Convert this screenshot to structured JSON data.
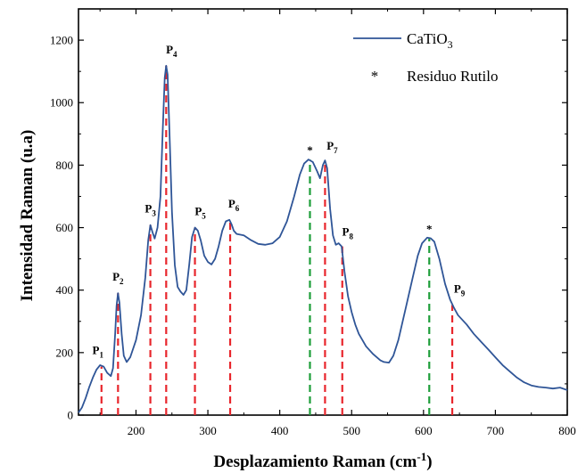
{
  "chart_data": {
    "type": "line",
    "xlabel": "Desplazamiento Raman (cm",
    "xlabel_sup": "-1",
    "xlabel_end": ")",
    "ylabel": "Intensidad Raman (u.a)",
    "xlim": [
      120,
      800
    ],
    "ylim": [
      0,
      1300
    ],
    "x_ticks": [
      200,
      300,
      400,
      500,
      600,
      700,
      800
    ],
    "y_ticks": [
      0,
      200,
      400,
      600,
      800,
      1000,
      1200
    ],
    "legend": {
      "position": "top-right",
      "series_label": "CaTiO",
      "series_sub": "3",
      "star_symbol": "*",
      "star_label": "Residuo Rutilo"
    },
    "series": [
      {
        "name": "CaTiO3",
        "color": "#2f5597",
        "points": [
          [
            120,
            8
          ],
          [
            125,
            25
          ],
          [
            130,
            55
          ],
          [
            135,
            90
          ],
          [
            140,
            120
          ],
          [
            145,
            145
          ],
          [
            150,
            160
          ],
          [
            155,
            155
          ],
          [
            160,
            135
          ],
          [
            165,
            125
          ],
          [
            168,
            150
          ],
          [
            171,
            260
          ],
          [
            173,
            350
          ],
          [
            175,
            390
          ],
          [
            177,
            360
          ],
          [
            180,
            260
          ],
          [
            183,
            190
          ],
          [
            187,
            170
          ],
          [
            192,
            185
          ],
          [
            200,
            240
          ],
          [
            207,
            320
          ],
          [
            213,
            440
          ],
          [
            217,
            560
          ],
          [
            220,
            608
          ],
          [
            223,
            585
          ],
          [
            226,
            565
          ],
          [
            230,
            600
          ],
          [
            234,
            700
          ],
          [
            237,
            900
          ],
          [
            240,
            1080
          ],
          [
            242,
            1118
          ],
          [
            244,
            1090
          ],
          [
            247,
            880
          ],
          [
            250,
            650
          ],
          [
            254,
            480
          ],
          [
            258,
            410
          ],
          [
            262,
            395
          ],
          [
            266,
            385
          ],
          [
            270,
            400
          ],
          [
            274,
            480
          ],
          [
            278,
            570
          ],
          [
            282,
            600
          ],
          [
            286,
            590
          ],
          [
            290,
            560
          ],
          [
            295,
            510
          ],
          [
            300,
            490
          ],
          [
            305,
            482
          ],
          [
            310,
            500
          ],
          [
            315,
            540
          ],
          [
            320,
            590
          ],
          [
            325,
            620
          ],
          [
            330,
            625
          ],
          [
            333,
            610
          ],
          [
            336,
            590
          ],
          [
            340,
            580
          ],
          [
            350,
            575
          ],
          [
            360,
            560
          ],
          [
            370,
            548
          ],
          [
            380,
            545
          ],
          [
            390,
            550
          ],
          [
            400,
            570
          ],
          [
            410,
            620
          ],
          [
            420,
            700
          ],
          [
            428,
            770
          ],
          [
            434,
            805
          ],
          [
            440,
            818
          ],
          [
            446,
            810
          ],
          [
            452,
            780
          ],
          [
            456,
            758
          ],
          [
            460,
            800
          ],
          [
            463,
            815
          ],
          [
            466,
            790
          ],
          [
            470,
            660
          ],
          [
            474,
            575
          ],
          [
            478,
            545
          ],
          [
            482,
            550
          ],
          [
            486,
            540
          ],
          [
            490,
            460
          ],
          [
            495,
            380
          ],
          [
            500,
            330
          ],
          [
            505,
            290
          ],
          [
            510,
            260
          ],
          [
            520,
            220
          ],
          [
            530,
            195
          ],
          [
            540,
            175
          ],
          [
            545,
            170
          ],
          [
            552,
            168
          ],
          [
            558,
            190
          ],
          [
            565,
            240
          ],
          [
            575,
            340
          ],
          [
            585,
            440
          ],
          [
            592,
            510
          ],
          [
            598,
            550
          ],
          [
            605,
            568
          ],
          [
            610,
            566
          ],
          [
            615,
            555
          ],
          [
            622,
            500
          ],
          [
            630,
            420
          ],
          [
            637,
            370
          ],
          [
            642,
            345
          ],
          [
            648,
            320
          ],
          [
            660,
            290
          ],
          [
            670,
            260
          ],
          [
            680,
            235
          ],
          [
            690,
            210
          ],
          [
            700,
            185
          ],
          [
            710,
            160
          ],
          [
            720,
            140
          ],
          [
            730,
            120
          ],
          [
            740,
            105
          ],
          [
            750,
            95
          ],
          [
            760,
            90
          ],
          [
            770,
            88
          ],
          [
            780,
            85
          ],
          [
            790,
            88
          ],
          [
            800,
            80
          ]
        ]
      }
    ],
    "peaks": [
      {
        "label": "P",
        "sub": "1",
        "x": 152,
        "y": 155,
        "color": "#e8262c"
      },
      {
        "label": "P",
        "sub": "2",
        "x": 175,
        "y": 390,
        "color": "#e8262c"
      },
      {
        "label": "P",
        "sub": "3",
        "x": 220,
        "y": 608,
        "color": "#e8262c"
      },
      {
        "label": "P",
        "sub": "4",
        "x": 242,
        "y": 1118,
        "color": "#e8262c"
      },
      {
        "label": "P",
        "sub": "5",
        "x": 282,
        "y": 600,
        "color": "#e8262c"
      },
      {
        "label": "P",
        "sub": "6",
        "x": 331,
        "y": 624,
        "color": "#e8262c"
      },
      {
        "label": "P",
        "sub": "7",
        "x": 463,
        "y": 815,
        "color": "#e8262c"
      },
      {
        "label": "P",
        "sub": "8",
        "x": 487,
        "y": 540,
        "color": "#e8262c"
      },
      {
        "label": "P",
        "sub": "9",
        "x": 640,
        "y": 352,
        "color": "#e8262c"
      }
    ],
    "stars": [
      {
        "label": "*",
        "x": 442,
        "y": 818,
        "color": "#1e9e3a"
      },
      {
        "label": "*",
        "x": 608,
        "y": 566,
        "color": "#1e9e3a"
      }
    ]
  }
}
